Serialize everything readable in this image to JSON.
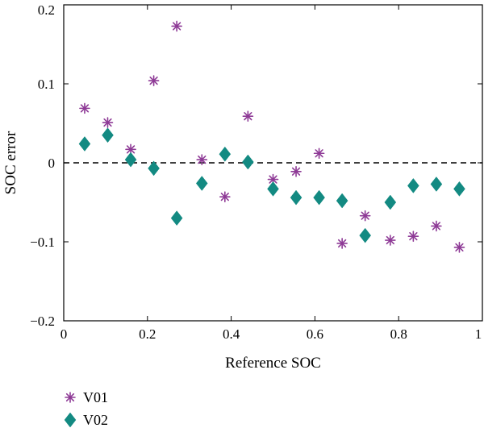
{
  "chart_data": {
    "type": "scatter",
    "title": "",
    "xlabel": "Reference SOC",
    "ylabel": "SOC error",
    "xlim": [
      0,
      1
    ],
    "ylim": [
      -0.2,
      0.2
    ],
    "xticks": [
      0,
      0.2,
      0.4,
      0.6,
      0.8,
      1
    ],
    "xtick_labels": [
      "0",
      "0.2",
      "0.4",
      "0.6",
      "0.8",
      "1"
    ],
    "yticks": [
      -0.2,
      -0.1,
      0,
      0.1,
      0.2
    ],
    "ytick_labels": [
      "−0.2",
      "−0.1",
      "0",
      "0.1",
      "0.2"
    ],
    "grid": false,
    "reference_line": {
      "y": 0,
      "style": "dashed"
    },
    "legend_position": "bottom-left, below plot",
    "series": [
      {
        "name": "V01",
        "marker": "asterisk",
        "color": "#8e3a96",
        "x": [
          0.05,
          0.105,
          0.16,
          0.215,
          0.27,
          0.33,
          0.385,
          0.44,
          0.5,
          0.555,
          0.61,
          0.665,
          0.72,
          0.78,
          0.835,
          0.89,
          0.945
        ],
        "y": [
          0.069,
          0.051,
          0.017,
          0.104,
          0.173,
          0.004,
          -0.043,
          0.059,
          -0.021,
          -0.011,
          0.012,
          -0.102,
          -0.067,
          -0.098,
          -0.093,
          -0.08,
          -0.107
        ]
      },
      {
        "name": "V02",
        "marker": "diamond",
        "color": "#138a82",
        "x": [
          0.05,
          0.105,
          0.16,
          0.215,
          0.27,
          0.33,
          0.385,
          0.44,
          0.5,
          0.555,
          0.61,
          0.665,
          0.72,
          0.78,
          0.835,
          0.89,
          0.945
        ],
        "y": [
          0.024,
          0.035,
          0.004,
          -0.007,
          -0.07,
          -0.026,
          0.011,
          0.001,
          -0.033,
          -0.044,
          -0.044,
          -0.048,
          -0.092,
          -0.05,
          -0.029,
          -0.027,
          -0.033
        ]
      }
    ]
  }
}
